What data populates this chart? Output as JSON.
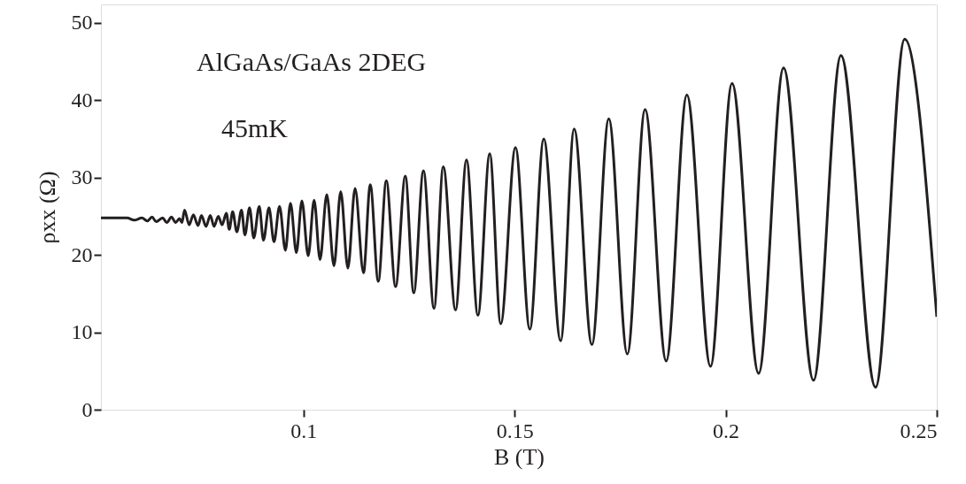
{
  "chart_data": {
    "type": "line",
    "xlabel": "B (T)",
    "ylabel": "ρxx (Ω)",
    "annotations": [
      "AlGaAs/GaAs 2DEG",
      "45mK"
    ],
    "xlim": [
      0.052,
      0.25
    ],
    "xticks": [
      0.1,
      0.15,
      0.2,
      0.25
    ],
    "ylim": [
      0,
      52.4
    ],
    "yticks": [
      0,
      10,
      20,
      30,
      40,
      50
    ],
    "grid": false,
    "marker": "none",
    "line_style": "solid",
    "series": [
      {
        "color": "#231f20",
        "x": [
          0.052,
          0.0582,
          0.0599,
          0.0617,
          0.063,
          0.0641,
          0.0651,
          0.0666,
          0.0676,
          0.0687,
          0.0697,
          0.0706,
          0.0712,
          0.0718,
          0.0729,
          0.0739,
          0.075,
          0.0758,
          0.0769,
          0.0779,
          0.0788,
          0.0798,
          0.0807,
          0.0817,
          0.0824,
          0.0832,
          0.0842,
          0.0853,
          0.0861,
          0.0872,
          0.0882,
          0.0895,
          0.0905,
          0.0918,
          0.093,
          0.0943,
          0.0957,
          0.0969,
          0.0983,
          0.0996,
          0.1011,
          0.1025,
          0.1039,
          0.1055,
          0.1072,
          0.1088,
          0.1105,
          0.1122,
          0.1142,
          0.1158,
          0.1177,
          0.1196,
          0.1218,
          0.1241,
          0.1261,
          0.1284,
          0.1309,
          0.1331,
          0.136,
          0.1386,
          0.1413,
          0.1441,
          0.1467,
          0.1502,
          0.1536,
          0.1569,
          0.1609,
          0.1641,
          0.1683,
          0.1723,
          0.1767,
          0.1809,
          0.1859,
          0.1908,
          0.1964,
          0.2015,
          0.2078,
          0.2137,
          0.2208,
          0.2273,
          0.2355,
          0.2424,
          0.25
        ],
        "values": [
          24.8,
          24.8,
          24.5,
          24.8,
          24.4,
          24.9,
          24.3,
          24.8,
          24.2,
          24.9,
          24.2,
          24.7,
          24.2,
          25.8,
          23.9,
          25.2,
          23.8,
          25.1,
          23.7,
          25.1,
          23.7,
          25.0,
          23.9,
          25.4,
          23.3,
          25.6,
          23.0,
          25.8,
          22.6,
          26.1,
          22.2,
          26.3,
          21.9,
          26.1,
          21.7,
          26.3,
          20.6,
          26.7,
          20.3,
          27.0,
          19.9,
          27.1,
          19.4,
          27.8,
          18.6,
          28.2,
          18.3,
          28.6,
          17.7,
          29.1,
          16.6,
          29.6,
          15.9,
          30.2,
          15.1,
          30.9,
          13.1,
          31.4,
          12.9,
          32.3,
          12.2,
          33.1,
          11.1,
          33.9,
          10.4,
          35.0,
          8.9,
          36.3,
          8.4,
          37.6,
          7.2,
          38.8,
          6.3,
          40.7,
          5.6,
          42.2,
          4.7,
          44.2,
          3.8,
          45.8,
          2.9,
          47.9,
          12.0
        ]
      }
    ]
  }
}
